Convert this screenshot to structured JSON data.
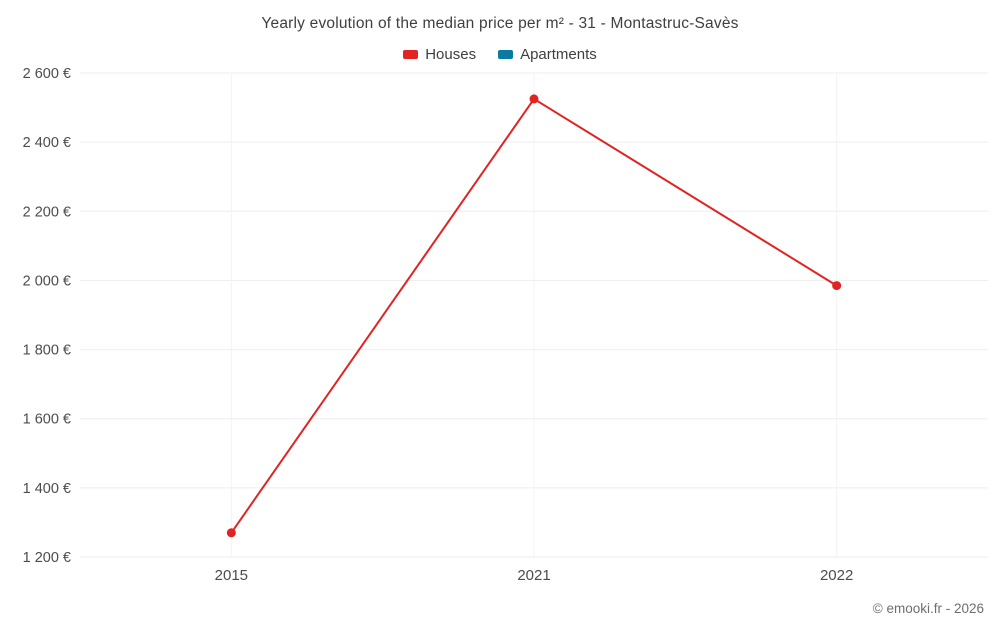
{
  "chart_data": {
    "type": "line",
    "title": "Yearly evolution of the median price per m² - 31 - Montastruc-Savès",
    "categories": [
      "2015",
      "2021",
      "2022"
    ],
    "series": [
      {
        "name": "Houses",
        "color": "#e02424",
        "values": [
          1270,
          2525,
          1985
        ]
      },
      {
        "name": "Apartments",
        "color": "#0b7aa3",
        "values": []
      }
    ],
    "ylim": [
      1200,
      2600
    ],
    "ytick_step": 200,
    "ytick_labels": [
      "1 200 €",
      "1 400 €",
      "1 600 €",
      "1 800 €",
      "2 000 €",
      "2 200 €",
      "2 400 €",
      "2 600 €"
    ],
    "grid": true,
    "legend_position": "top",
    "marker_radius": 4.5,
    "colors": {
      "grid": "#ededed",
      "grid_vertical": "#f3f3f3",
      "tick_text": "#4c4c4c"
    }
  },
  "footer": {
    "copyright": "© emooki.fr - 2026"
  }
}
